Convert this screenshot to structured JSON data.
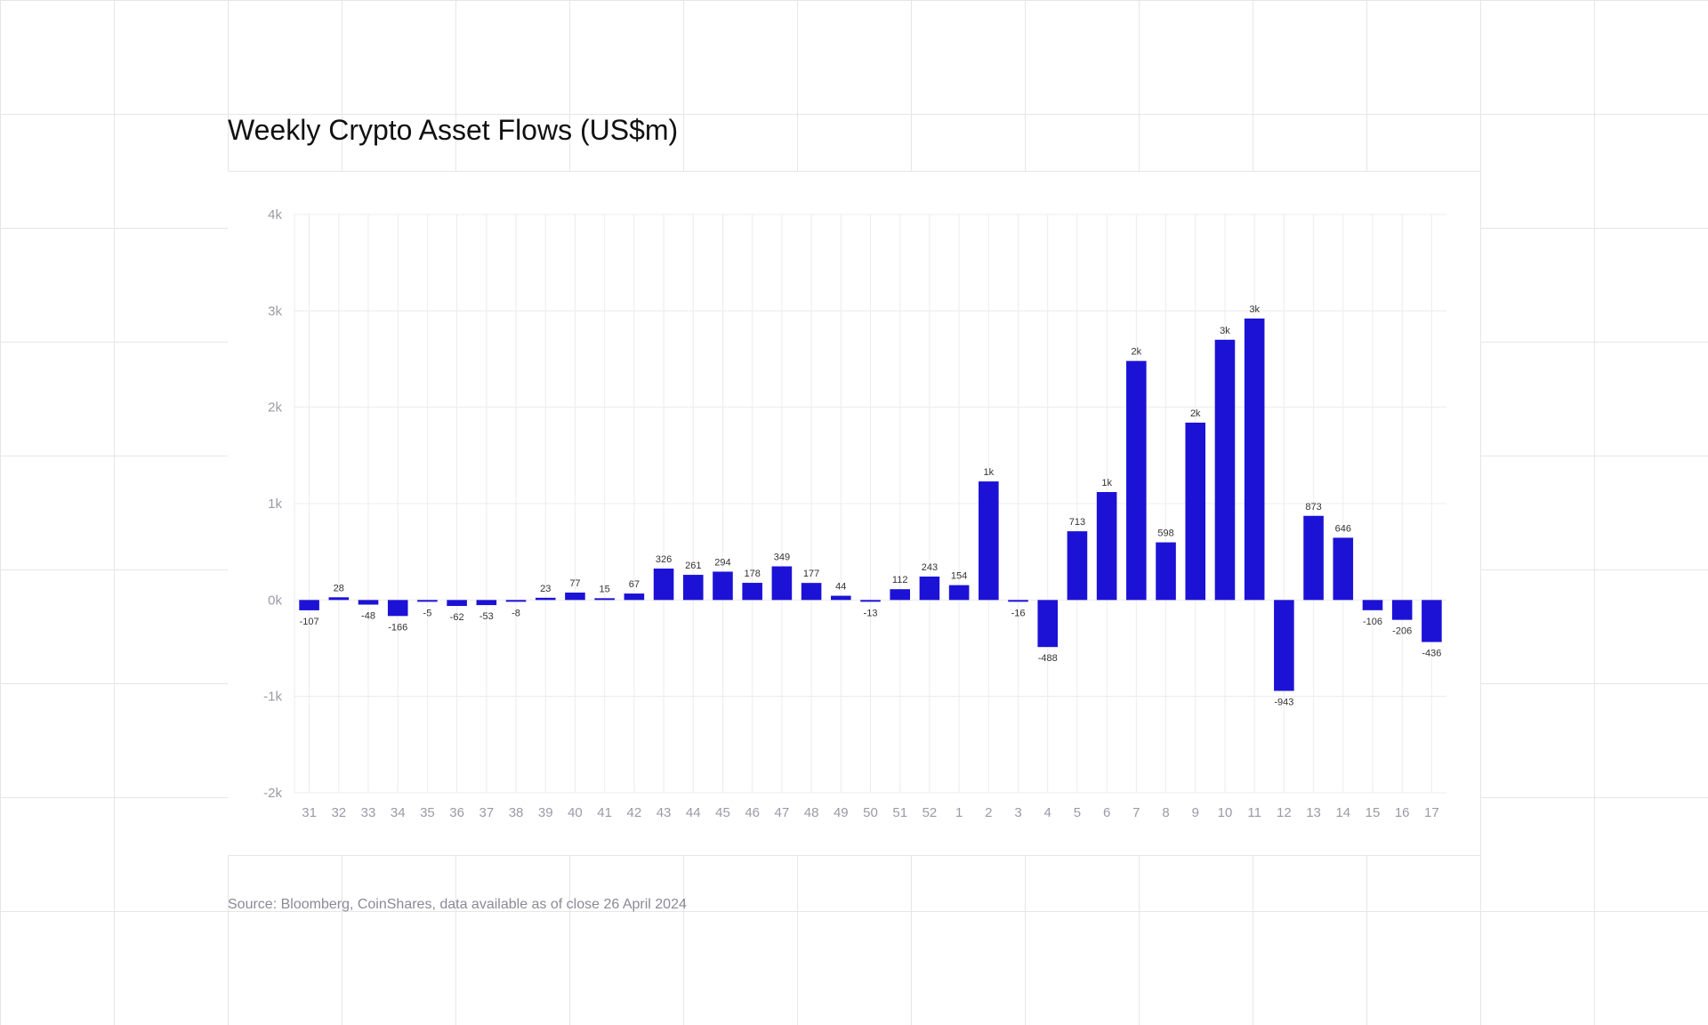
{
  "title": "Weekly Crypto Asset Flows (US$m)",
  "source": "Source: Bloomberg, CoinShares, data available as of close 26 April 2024",
  "chart_data": {
    "type": "bar",
    "title": "Weekly Crypto Asset Flows (US$m)",
    "xlabel": "",
    "ylabel": "",
    "ylim": [
      -2000,
      4000
    ],
    "yticks": [
      4000,
      3000,
      2000,
      1000,
      0,
      -1000,
      -2000
    ],
    "ytick_labels": [
      "4k",
      "3k",
      "2k",
      "1k",
      "0k",
      "-1k",
      "-2k"
    ],
    "grid": true,
    "bar_color": "#1c12d6",
    "categories": [
      "31",
      "32",
      "33",
      "34",
      "35",
      "36",
      "37",
      "38",
      "39",
      "40",
      "41",
      "42",
      "43",
      "44",
      "45",
      "46",
      "47",
      "48",
      "49",
      "50",
      "51",
      "52",
      "1",
      "2",
      "3",
      "4",
      "5",
      "6",
      "7",
      "8",
      "9",
      "10",
      "11",
      "12",
      "13",
      "14",
      "15",
      "16",
      "17"
    ],
    "values": [
      -107,
      28,
      -48,
      -166,
      -5,
      -62,
      -53,
      -8,
      23,
      77,
      15,
      67,
      326,
      261,
      294,
      178,
      349,
      177,
      44,
      -13,
      112,
      243,
      154,
      1230,
      -16,
      -488,
      713,
      1120,
      2480,
      598,
      1840,
      2700,
      2920,
      -943,
      873,
      646,
      -106,
      -206,
      -436
    ],
    "labels": [
      "-107",
      "28",
      "-48",
      "-166",
      "-5",
      "-62",
      "-53",
      "-8",
      "23",
      "77",
      "15",
      "67",
      "326",
      "261",
      "294",
      "178",
      "349",
      "177",
      "44",
      "-13",
      "112",
      "243",
      "154",
      "1k",
      "-16",
      "-488",
      "713",
      "1k",
      "2k",
      "598",
      "2k",
      "3k",
      "3k",
      "-943",
      "873",
      "646",
      "-106",
      "-206",
      "-436"
    ]
  }
}
